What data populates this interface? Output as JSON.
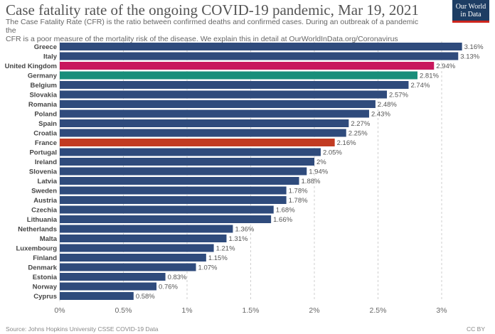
{
  "header": {
    "title": "Case fatality rate of the ongoing COVID-19 pandemic, Mar 19, 2021",
    "subtitle_line1": "The Case Fatality Rate (CFR) is the ratio between confirmed deaths and confirmed cases. During an outbreak of a pandemic the",
    "subtitle_line2": "CFR is a poor measure of the mortality risk of the disease. We explain this in detail at OurWorldInData.org/Coronavirus",
    "logo_line1": "Our World",
    "logo_line2": "in Data"
  },
  "footer": {
    "source": "Source: Johns Hopkins University CSSE COVID-19 Data",
    "license": "CC BY"
  },
  "colors": {
    "default_bar": "#2f4b7c",
    "highlight_uk": "#c8175d",
    "highlight_germany": "#188e7a",
    "highlight_france": "#c23b22",
    "logo_bg": "#1d3d63",
    "logo_accent": "#ce261e"
  },
  "chart_data": {
    "type": "bar",
    "orientation": "horizontal",
    "title": "Case fatality rate of the ongoing COVID-19 pandemic, Mar 19, 2021",
    "xlim": [
      0,
      3
    ],
    "xticks": [
      "0%",
      "0.5%",
      "1%",
      "1.5%",
      "2%",
      "2.5%",
      "3%"
    ],
    "grid": "vertical dashed",
    "categories": [
      "Greece",
      "Italy",
      "United Kingdom",
      "Germany",
      "Belgium",
      "Slovakia",
      "Romania",
      "Poland",
      "Spain",
      "Croatia",
      "France",
      "Portugal",
      "Ireland",
      "Slovenia",
      "Latvia",
      "Sweden",
      "Austria",
      "Czechia",
      "Lithuania",
      "Netherlands",
      "Malta",
      "Luxembourg",
      "Finland",
      "Denmark",
      "Estonia",
      "Norway",
      "Cyprus"
    ],
    "values": [
      3.16,
      3.13,
      2.94,
      2.81,
      2.74,
      2.57,
      2.48,
      2.43,
      2.27,
      2.25,
      2.16,
      2.05,
      2,
      1.94,
      1.88,
      1.78,
      1.78,
      1.68,
      1.66,
      1.36,
      1.31,
      1.21,
      1.15,
      1.07,
      0.83,
      0.76,
      0.58
    ],
    "value_labels": [
      "3.16%",
      "3.13%",
      "2.94%",
      "2.81%",
      "2.74%",
      "2.57%",
      "2.48%",
      "2.43%",
      "2.27%",
      "2.25%",
      "2.16%",
      "2.05%",
      "2%",
      "1.94%",
      "1.88%",
      "1.78%",
      "1.78%",
      "1.68%",
      "1.66%",
      "1.36%",
      "1.31%",
      "1.21%",
      "1.15%",
      "1.07%",
      "0.83%",
      "0.76%",
      "0.58%"
    ],
    "highlighted": {
      "United Kingdom": "#c8175d",
      "Germany": "#188e7a",
      "France": "#c23b22"
    }
  }
}
